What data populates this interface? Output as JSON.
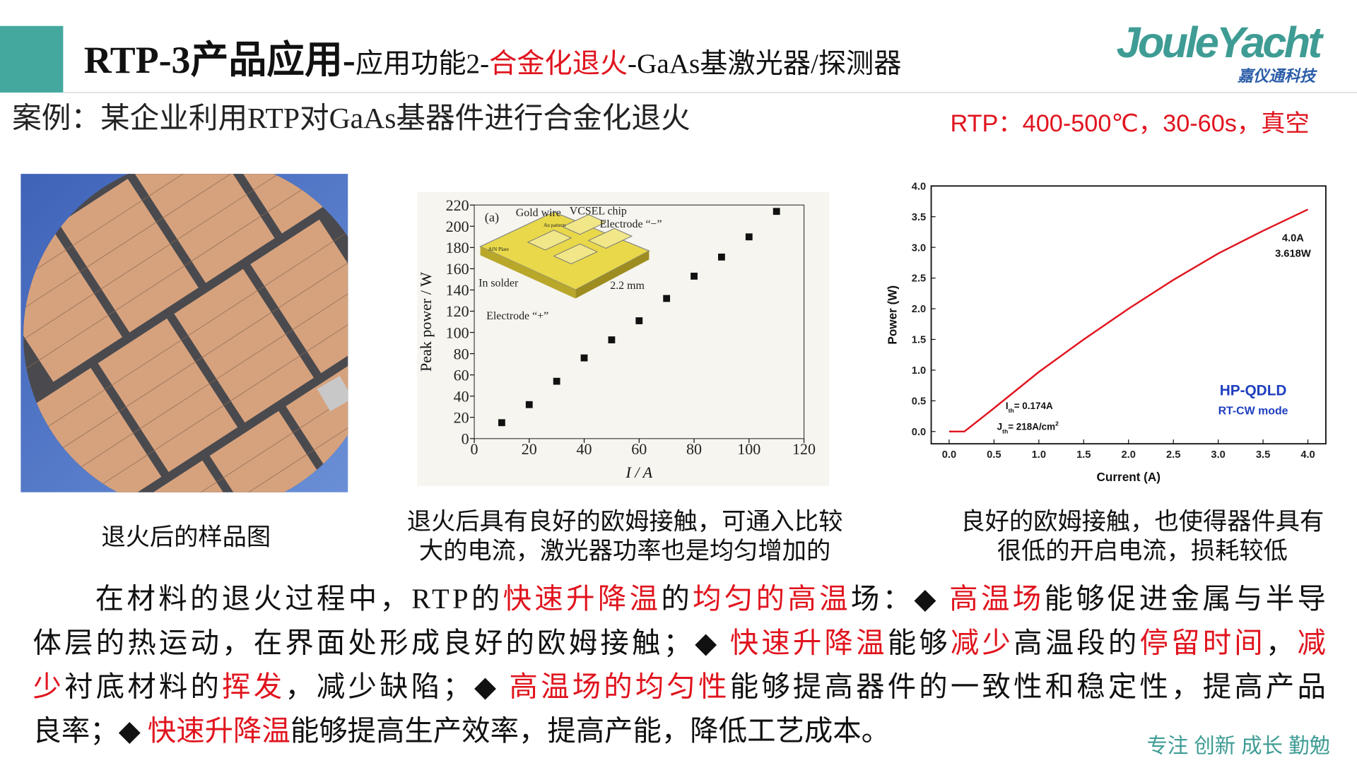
{
  "header": {
    "title": "RTP-3产品应用-",
    "subtitle_parts": [
      {
        "text": "应用功能2-",
        "red": false
      },
      {
        "text": "合金化退火",
        "red": true
      },
      {
        "text": "-GaAs基激光器/探测器",
        "red": false
      }
    ]
  },
  "logo": {
    "name": "JouleYacht",
    "company": "嘉仪通科技"
  },
  "case": "案例：某企业利用RTP对GaAs基器件进行合金化退火",
  "conditions": "RTP：400-500℃，30-60s，真空",
  "figures": {
    "photo_caption": "退火后的样品图",
    "chart1_caption": [
      "退火后具有良好的欧姆接触，可通入比较",
      "大的电流，激光器功率也是均匀增加的"
    ],
    "chart2_caption": [
      "良好的欧姆接触，也使得器件具有",
      "很低的开启电流，损耗较低"
    ]
  },
  "chart_data": [
    {
      "type": "scatter",
      "xlabel": "I / A",
      "ylabel": "Peak power / W",
      "color": "#111111",
      "x": [
        10,
        20,
        30,
        40,
        50,
        60,
        70,
        80,
        90,
        100,
        110
      ],
      "values": [
        15,
        32,
        54,
        76,
        93,
        111,
        132,
        153,
        171,
        190,
        214
      ],
      "xlim": [
        0,
        120
      ],
      "xticks": [
        0,
        20,
        40,
        60,
        80,
        100,
        120
      ],
      "ylim": [
        0,
        220
      ],
      "yticks": [
        0,
        20,
        40,
        60,
        80,
        100,
        120,
        140,
        160,
        180,
        200,
        220
      ],
      "annotations": [
        "(a)",
        "Gold wire",
        "VCSEL chip",
        "Electrode “−”",
        "AlN Plate",
        "Au pattern",
        "In solder",
        "2.2 mm",
        "Electrode “+”"
      ]
    },
    {
      "type": "line",
      "xlabel": "Current (A)",
      "ylabel": "Power (W)",
      "color": "#e0141e",
      "x": [
        0,
        0.17,
        0.5,
        1.0,
        1.5,
        2.0,
        2.5,
        3.0,
        3.5,
        4.0
      ],
      "values": [
        0,
        0,
        0.38,
        0.97,
        1.5,
        2.0,
        2.47,
        2.9,
        3.27,
        3.618
      ],
      "xlim": [
        -0.2,
        4.2
      ],
      "xticks": [
        {
          "value": 0,
          "label": "0.0"
        },
        0.5,
        {
          "value": 1,
          "label": "1.0"
        },
        1.5,
        {
          "value": 2,
          "label": "2.0"
        },
        2.5,
        {
          "value": 3,
          "label": "3.0"
        },
        3.5,
        {
          "value": 4,
          "label": "4.0"
        }
      ],
      "ylim": [
        -0.2,
        4.0
      ],
      "yticks": [
        {
          "value": 0,
          "label": "0.0"
        },
        0.5,
        {
          "value": 1,
          "label": "1.0"
        },
        1.5,
        {
          "value": 2,
          "label": "2.0"
        },
        2.5,
        {
          "value": 3,
          "label": "3.0"
        },
        3.5,
        {
          "value": 4,
          "label": "4.0"
        }
      ],
      "annotations": [
        "4.0A",
        "3.618W",
        "HP-QDLD",
        "RT-CW mode"
      ],
      "threshold_current": [
        "I",
        "th",
        "= 0.174A"
      ],
      "threshold_density": [
        "J",
        "th",
        "= 218A/cm",
        "2"
      ]
    }
  ],
  "paragraph": [
    [
      {
        "text": "在材料的退火过程中，RTP的",
        "red": false
      },
      {
        "text": "快速升降温",
        "red": true
      },
      {
        "text": "的",
        "red": false
      },
      {
        "text": "均匀的高温",
        "red": true
      },
      {
        "text": "场：◆ ",
        "red": false
      },
      {
        "text": "高温场",
        "red": true
      },
      {
        "text": "能够促进金属与半导",
        "red": false
      }
    ],
    [
      {
        "text": "体层的热运动，在界面处形成良好的欧姆接触；◆ ",
        "red": false
      },
      {
        "text": "快速升降温",
        "red": true
      },
      {
        "text": "能够",
        "red": false
      },
      {
        "text": "减少",
        "red": true
      },
      {
        "text": "高温段的",
        "red": false
      },
      {
        "text": "停留时间",
        "red": true
      },
      {
        "text": "，",
        "red": false
      },
      {
        "text": "减",
        "red": true
      }
    ],
    [
      {
        "text": "少",
        "red": true
      },
      {
        "text": "衬底材料的",
        "red": false
      },
      {
        "text": "挥发",
        "red": true
      },
      {
        "text": "，减少缺陷；◆ ",
        "red": false
      },
      {
        "text": "高温场的均匀性",
        "red": true
      },
      {
        "text": "能够提高器件的一致性和稳定性，提高产品",
        "red": false
      }
    ],
    [
      {
        "text": "良率；◆ ",
        "red": false
      },
      {
        "text": "快速升降温",
        "red": true
      },
      {
        "text": "能够提高生产效率，提高产能，降低工艺成本。",
        "red": false
      }
    ]
  ],
  "slogan": "专注 创新 成长 勤勉"
}
